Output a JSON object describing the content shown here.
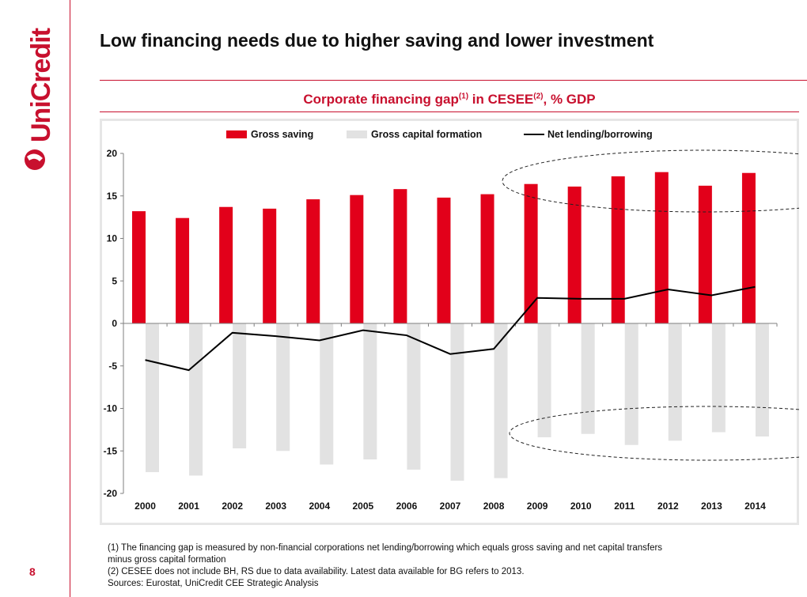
{
  "brand": {
    "name": "UniCredit",
    "accent_color": "#c8102e"
  },
  "slide": {
    "title": "Low financing needs due to higher saving and lower investment",
    "page_number": "8"
  },
  "chart_title": {
    "text": "Corporate financing gap",
    "sup1": "(1)",
    "middle": " in CESEE",
    "sup2": "(2)",
    "end": ", % GDP"
  },
  "chart_data": {
    "type": "bar",
    "categories": [
      "2000",
      "2001",
      "2002",
      "2003",
      "2004",
      "2005",
      "2006",
      "2007",
      "2008",
      "2009",
      "2010",
      "2011",
      "2012",
      "2013",
      "2014"
    ],
    "series": [
      {
        "name": "Gross saving",
        "type": "bar",
        "color": "#e2001a",
        "values": [
          13.2,
          12.4,
          13.7,
          13.5,
          14.6,
          15.1,
          15.8,
          14.8,
          15.2,
          16.4,
          16.1,
          17.3,
          17.8,
          16.2,
          17.7
        ]
      },
      {
        "name": "Gross capital formation",
        "type": "bar",
        "color": "#e2e2e2",
        "values": [
          -17.5,
          -17.9,
          -14.7,
          -15.0,
          -16.6,
          -16.0,
          -17.2,
          -18.5,
          -18.2,
          -13.4,
          -13.0,
          -14.3,
          -13.8,
          -12.8,
          -13.3
        ]
      },
      {
        "name": "Net lending/borrowing",
        "type": "line",
        "color": "#000000",
        "values": [
          -4.3,
          -5.5,
          -1.1,
          -1.5,
          -2.0,
          -0.8,
          -1.4,
          -3.6,
          -3.0,
          3.0,
          2.9,
          2.9,
          4.0,
          3.3,
          4.3
        ]
      }
    ],
    "y_ticks": [
      "20",
      "15",
      "10",
      "5",
      "0",
      "-5",
      "-10",
      "-15",
      "-20"
    ],
    "ylim": [
      -20,
      20
    ],
    "xlabel": "",
    "ylabel": "",
    "grid": false,
    "legend_position": "top",
    "annotations": [
      "dashed ellipse around 2009-2014 gross saving bars",
      "dashed ellipse around 2009-2014 gross capital formation bars"
    ]
  },
  "footnotes": {
    "line1": "(1) The financing gap is measured by non-financial corporations net lending/borrowing which equals gross saving and net capital transfers",
    "line2": "minus gross capital  formation",
    "line3": "(2) CESEE does not include BH, RS due to data availability.  Latest data available  for BG refers to 2013.",
    "sources": "Sources: Eurostat, UniCredit CEE Strategic Analysis"
  }
}
